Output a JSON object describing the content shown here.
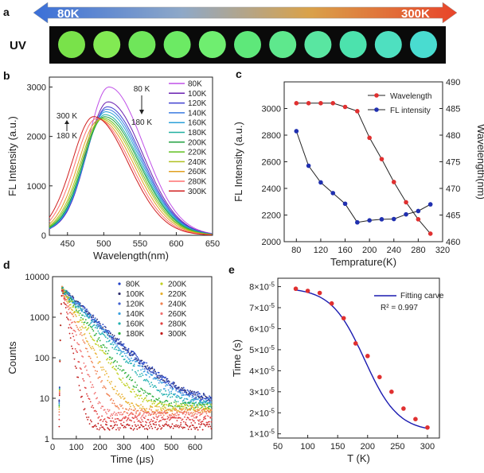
{
  "panel_a": {
    "panel_label": "a",
    "arrow_left_label": "80K",
    "arrow_right_label": "300K",
    "uv_label": "UV",
    "sample_colors": [
      "#79e24a",
      "#82ea53",
      "#6fe65a",
      "#6cea64",
      "#6fee70",
      "#5ee87a",
      "#5ee88d",
      "#59e6a1",
      "#4ce2ad",
      "#4ee0c0",
      "#49dcd0"
    ]
  },
  "chart_data": [
    {
      "id": "b",
      "panel_label": "b",
      "type": "line",
      "xlabel": "Wavelength(nm)",
      "ylabel": "FL Intensity (a.u.)",
      "xlim": [
        425,
        650
      ],
      "ylim": [
        0,
        3200
      ],
      "xticks": [
        450,
        500,
        550,
        600,
        650
      ],
      "yticks": [
        0,
        1000,
        2000,
        3000
      ],
      "series": [
        {
          "name": "80K",
          "color": "#c050e8",
          "peak": 3000,
          "center": 507
        },
        {
          "name": "100K",
          "color": "#6a1fb0",
          "peak": 2700,
          "center": 506
        },
        {
          "name": "120K",
          "color": "#4040d0",
          "peak": 2600,
          "center": 505
        },
        {
          "name": "140K",
          "color": "#3a7be0",
          "peak": 2550,
          "center": 504
        },
        {
          "name": "160K",
          "color": "#2ba0d8",
          "peak": 2500,
          "center": 503
        },
        {
          "name": "180K",
          "color": "#20b0a0",
          "peak": 2440,
          "center": 502
        },
        {
          "name": "200K",
          "color": "#20a040",
          "peak": 2400,
          "center": 501
        },
        {
          "name": "220K",
          "color": "#60c020",
          "peak": 2370,
          "center": 499
        },
        {
          "name": "240K",
          "color": "#b0c020",
          "peak": 2350,
          "center": 497
        },
        {
          "name": "260K",
          "color": "#e0a020",
          "peak": 2340,
          "center": 494
        },
        {
          "name": "280K",
          "color": "#ff7070",
          "peak": 2360,
          "center": 490
        },
        {
          "name": "300K",
          "color": "#d02020",
          "peak": 2400,
          "center": 486
        }
      ],
      "annotations": [
        {
          "text": "80 K"
        },
        {
          "text": "180 K"
        },
        {
          "text": "300 K"
        },
        {
          "text": "180 K"
        }
      ]
    },
    {
      "id": "c",
      "panel_label": "c",
      "type": "line",
      "xlabel": "Temprature(K)",
      "ylabel": "FL Intensity (a.u.)",
      "y2label": "Wavelength(nm)",
      "xlim": [
        60,
        320
      ],
      "ylim": [
        2000,
        3200
      ],
      "y2lim": [
        460,
        490
      ],
      "xticks": [
        80,
        120,
        160,
        200,
        240,
        280,
        320
      ],
      "yticks": [
        2000,
        2200,
        2400,
        2600,
        2800,
        3000
      ],
      "y2ticks": [
        460,
        465,
        470,
        475,
        480,
        485,
        490
      ],
      "x": [
        80,
        100,
        120,
        140,
        160,
        180,
        200,
        220,
        240,
        260,
        280,
        300
      ],
      "series": [
        {
          "name": "Wavelength",
          "axis": "right",
          "color": "#e03030",
          "values": [
            486,
            486,
            486,
            486,
            485.3,
            484.5,
            479.5,
            475.5,
            471.2,
            467.4,
            464.2,
            461.5
          ]
        },
        {
          "name": "FL intensity",
          "axis": "left",
          "color": "#2030b0",
          "values": [
            2830,
            2570,
            2445,
            2365,
            2285,
            2145,
            2160,
            2168,
            2170,
            2205,
            2230,
            2280
          ]
        }
      ]
    },
    {
      "id": "d",
      "panel_label": "d",
      "type": "scatter",
      "xlabel": "Time (μs)",
      "ylabel": "Counts",
      "xlim": [
        0,
        670
      ],
      "ylim_log": [
        1,
        10000
      ],
      "xticks": [
        0,
        100,
        200,
        300,
        400,
        500,
        600
      ],
      "yticks": [
        1,
        10,
        100,
        1000,
        10000
      ],
      "peak_time": 40,
      "peak_counts": 5000,
      "series": [
        {
          "name": "80K",
          "color": "#2040c8",
          "tau": 79,
          "floor": 9
        },
        {
          "name": "100K",
          "color": "#303070",
          "tau": 78,
          "floor": 8.5
        },
        {
          "name": "120K",
          "color": "#4060d0",
          "tau": 77,
          "floor": 8
        },
        {
          "name": "140K",
          "color": "#3aa0e0",
          "tau": 72,
          "floor": 7.5
        },
        {
          "name": "160K",
          "color": "#20b0b0",
          "tau": 65,
          "floor": 7
        },
        {
          "name": "180K",
          "color": "#30b040",
          "tau": 53,
          "floor": 6.5
        },
        {
          "name": "200K",
          "color": "#c0d020",
          "tau": 47,
          "floor": 6
        },
        {
          "name": "220K",
          "color": "#e8b030",
          "tau": 37,
          "floor": 5.3
        },
        {
          "name": "240K",
          "color": "#f08050",
          "tau": 30,
          "floor": 4.6
        },
        {
          "name": "260K",
          "color": "#f07070",
          "tau": 22,
          "floor": 3.9
        },
        {
          "name": "280K",
          "color": "#e04040",
          "tau": 17,
          "floor": 3
        },
        {
          "name": "300K",
          "color": "#c01818",
          "tau": 13,
          "floor": 2
        }
      ]
    },
    {
      "id": "e",
      "panel_label": "e",
      "type": "scatter",
      "xlabel": "T (K)",
      "ylabel": "Time (s)",
      "xlim": [
        50,
        320
      ],
      "ylim": [
        0.8,
        8.4
      ],
      "y_exponent": "-5",
      "xticks": [
        50,
        100,
        150,
        200,
        250,
        300
      ],
      "yticks": [
        1,
        2,
        3,
        4,
        5,
        6,
        7,
        8
      ],
      "x": [
        80,
        100,
        120,
        140,
        160,
        180,
        200,
        220,
        240,
        260,
        280,
        300
      ],
      "values": [
        7.9,
        7.8,
        7.7,
        7.2,
        6.5,
        5.3,
        4.7,
        3.7,
        3.0,
        2.2,
        1.7,
        1.3
      ],
      "fit_label": "Fitting carve",
      "r2_label": "R² = 0.997",
      "fit_color": "#1a1ab0",
      "point_color": "#e03030"
    }
  ],
  "panel_d_legend_title": "",
  "panel_c_legend": [
    "Wavelength",
    "FL intensity"
  ]
}
